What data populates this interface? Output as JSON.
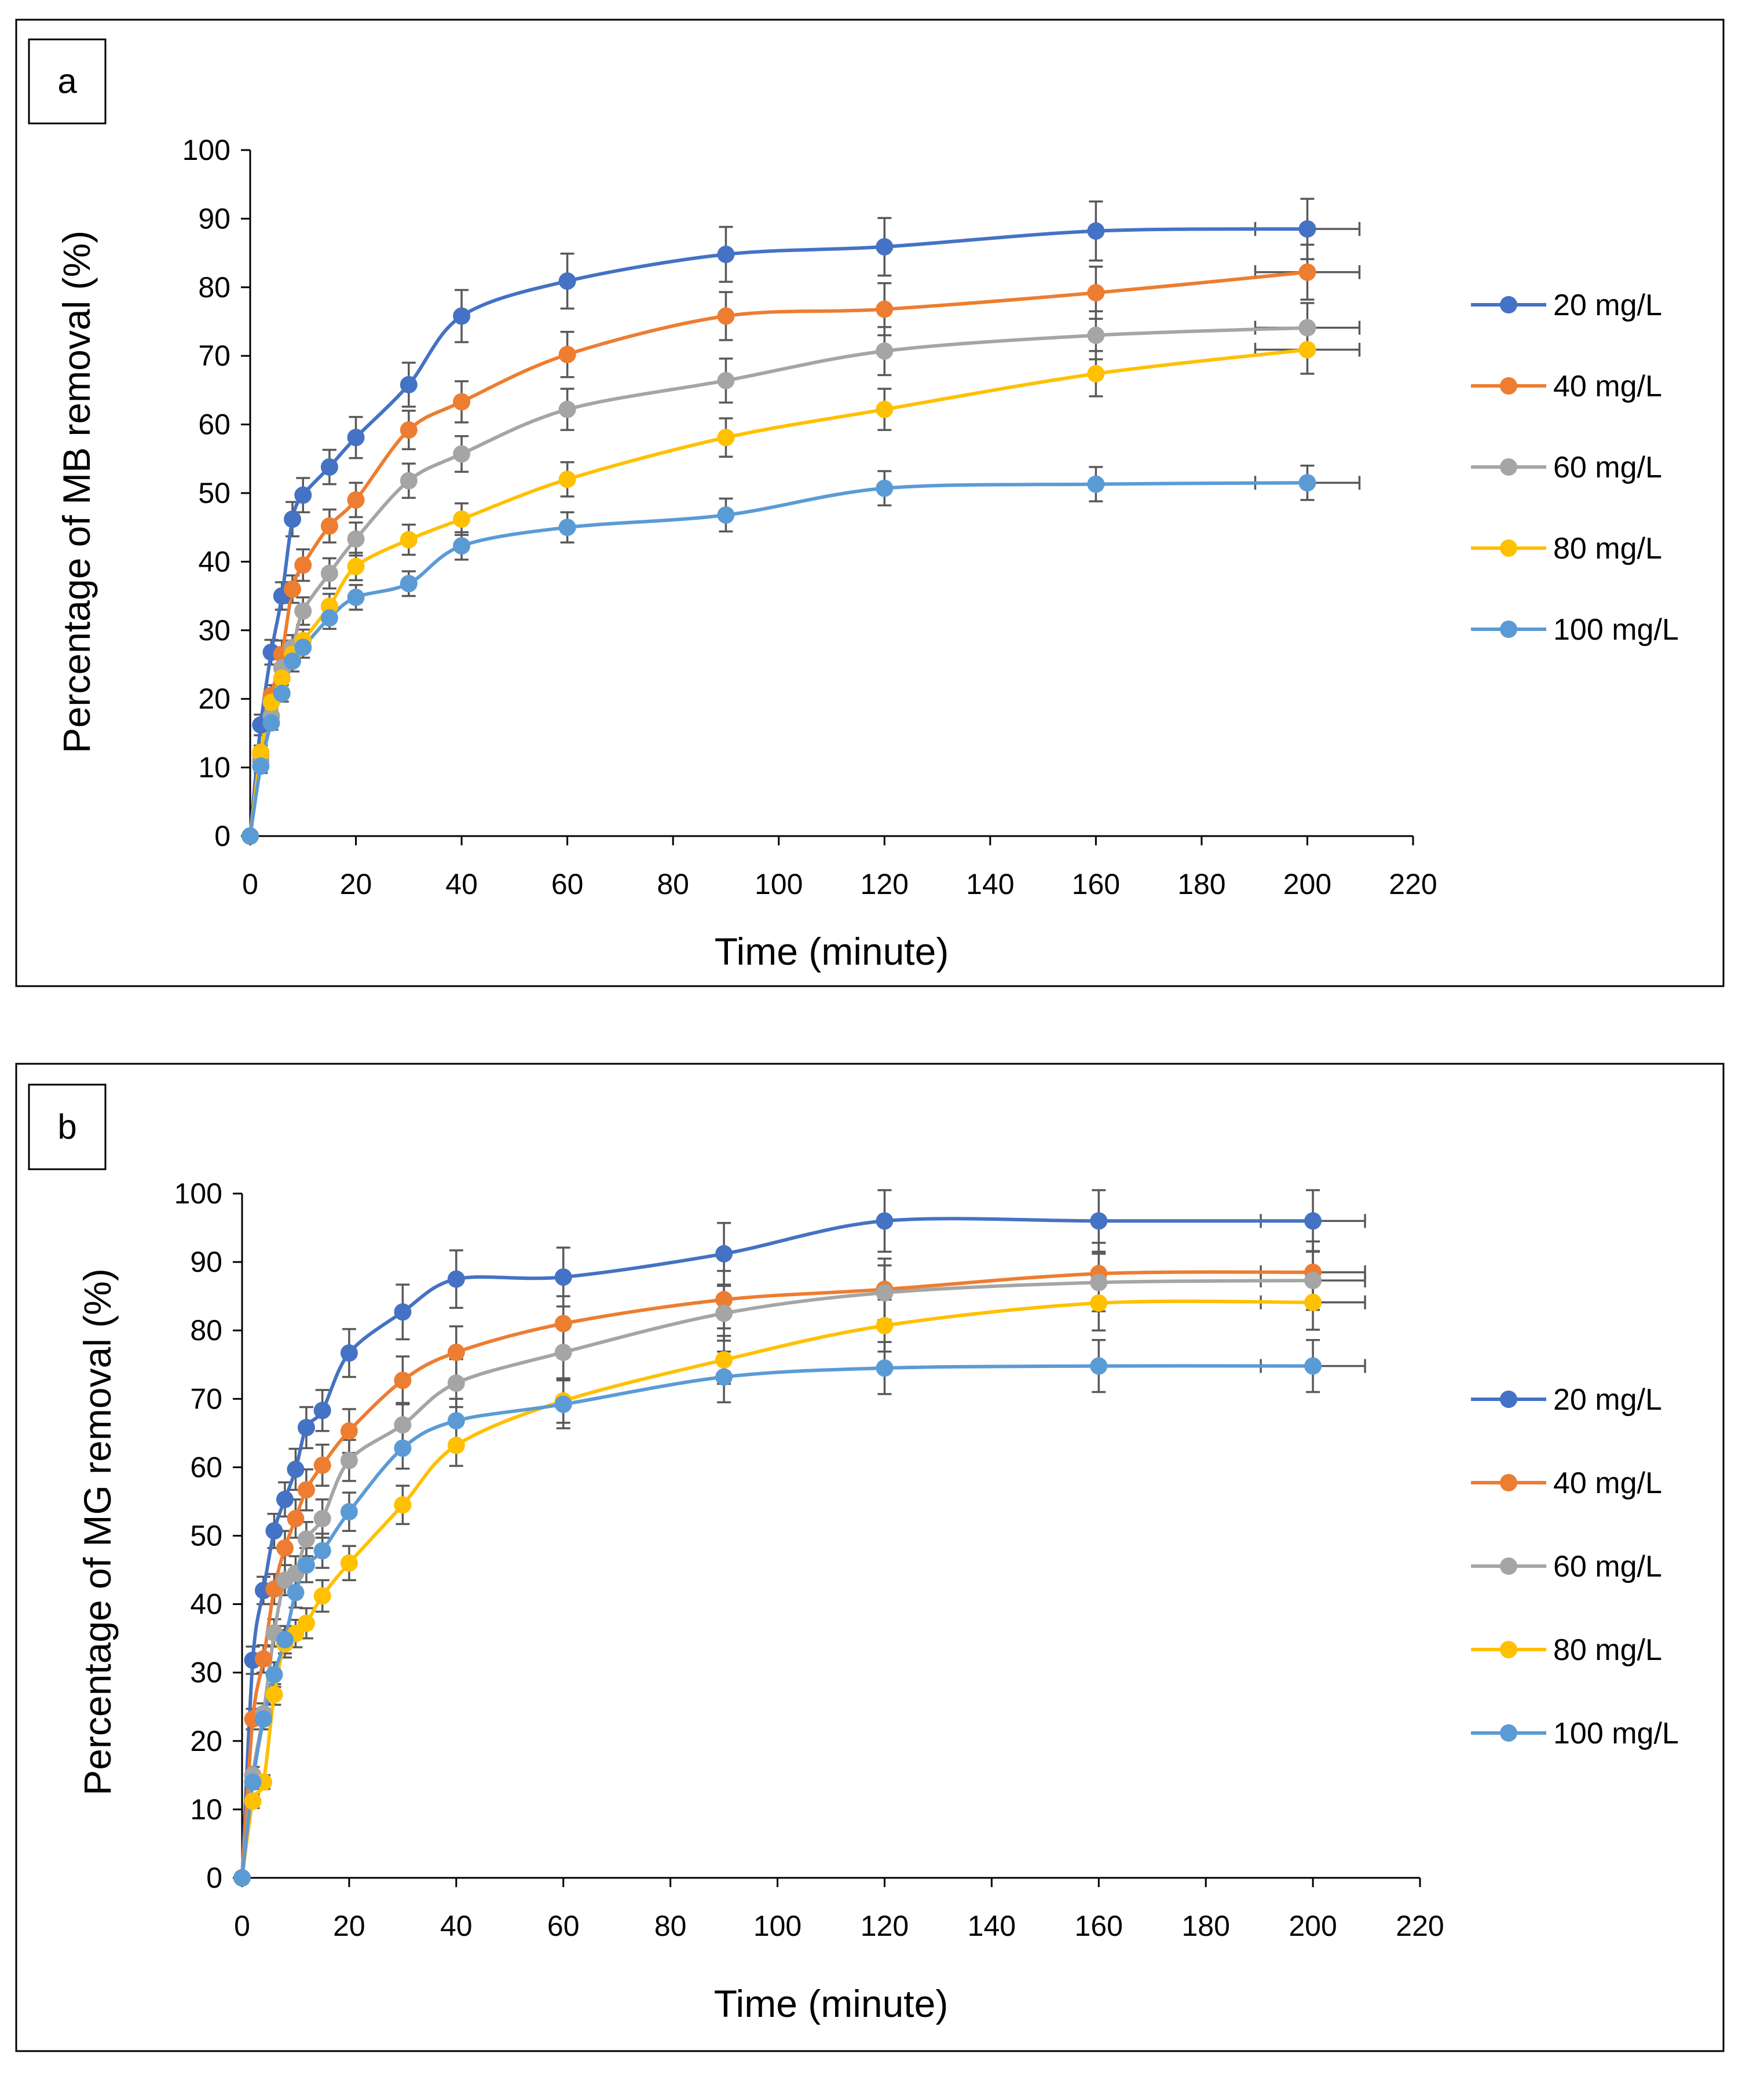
{
  "chart_data": [
    {
      "type": "line",
      "panel_label": "a",
      "xlabel": "Time (minute)",
      "ylabel": "Percentage of MB removal (%)",
      "xlim": [
        0,
        220
      ],
      "ylim": [
        0,
        100
      ],
      "xticks": [
        0,
        20,
        40,
        60,
        80,
        100,
        120,
        140,
        160,
        180,
        200,
        220
      ],
      "yticks": [
        0,
        10,
        20,
        30,
        40,
        50,
        60,
        70,
        80,
        90,
        100
      ],
      "legend_position": "right",
      "x": [
        0,
        2,
        4,
        6,
        8,
        10,
        15,
        20,
        30,
        40,
        60,
        90,
        120,
        160,
        200
      ],
      "series": [
        {
          "name": "20 mg/L",
          "color": "#4472C4",
          "values": [
            0,
            16.2,
            26.8,
            35,
            46.2,
            49.7,
            53.8,
            58.1,
            65.8,
            75.8,
            80.9,
            84.8,
            85.9,
            88.2,
            88.5
          ],
          "errors": [
            0,
            1.5,
            1.8,
            2,
            2.5,
            2.5,
            2.5,
            3,
            3.2,
            3.8,
            4,
            4,
            4.2,
            4.3,
            4.4
          ]
        },
        {
          "name": "40 mg/L",
          "color": "#ED7D31",
          "values": [
            0,
            12,
            20.5,
            26.5,
            36,
            39.5,
            45.2,
            49,
            59.2,
            63.3,
            70.2,
            75.8,
            76.8,
            79.2,
            82.2
          ],
          "errors": [
            0,
            1.2,
            1.5,
            2,
            2,
            2.3,
            2.4,
            2.5,
            2.8,
            3,
            3.3,
            3.5,
            3.8,
            3.8,
            4
          ]
        },
        {
          "name": "60 mg/L",
          "color": "#A5A5A5",
          "values": [
            0,
            11,
            17.5,
            24.5,
            27.5,
            32.8,
            38.3,
            43.3,
            51.8,
            55.7,
            62.2,
            66.4,
            70.7,
            73,
            74.1
          ],
          "errors": [
            0,
            1,
            1.2,
            1.5,
            1.8,
            2,
            2.2,
            2.4,
            2.5,
            2.6,
            3,
            3.2,
            3.5,
            3.5,
            3.6
          ]
        },
        {
          "name": "80 mg/L",
          "color": "#FFC000",
          "values": [
            0,
            12.2,
            19.5,
            23,
            26.5,
            28.5,
            33.5,
            39.3,
            43.2,
            46.2,
            52,
            58.1,
            62.2,
            67.4,
            70.9
          ],
          "errors": [
            0,
            1,
            1.2,
            1.5,
            1.5,
            1.6,
            1.8,
            2,
            2.2,
            2.3,
            2.5,
            2.8,
            3,
            3.3,
            3.5
          ]
        },
        {
          "name": "100 mg/L",
          "color": "#5B9BD5",
          "values": [
            0,
            10.2,
            16.5,
            20.8,
            25.5,
            27.5,
            31.8,
            34.8,
            36.8,
            42.3,
            45,
            46.8,
            50.7,
            51.3,
            51.5
          ],
          "errors": [
            0,
            1,
            1,
            1.2,
            1.5,
            1.5,
            1.6,
            1.8,
            1.8,
            2,
            2.2,
            2.4,
            2.5,
            2.5,
            2.5
          ]
        }
      ]
    },
    {
      "type": "line",
      "panel_label": "b",
      "xlabel": "Time (minute)",
      "ylabel": "Percentage of MG removal (%)",
      "xlim": [
        0,
        220
      ],
      "ylim": [
        0,
        100
      ],
      "xticks": [
        0,
        20,
        40,
        60,
        80,
        100,
        120,
        140,
        160,
        180,
        200,
        220
      ],
      "yticks": [
        0,
        10,
        20,
        30,
        40,
        50,
        60,
        70,
        80,
        90,
        100
      ],
      "legend_position": "right",
      "x": [
        0,
        2,
        4,
        6,
        8,
        10,
        12,
        15,
        20,
        30,
        40,
        60,
        90,
        120,
        160,
        200
      ],
      "series": [
        {
          "name": "20 mg/L",
          "color": "#4472C4",
          "values": [
            0,
            31.8,
            42,
            50.7,
            55.3,
            59.7,
            65.8,
            68.3,
            76.7,
            82.7,
            87.5,
            87.8,
            91.2,
            96,
            96,
            96
          ],
          "errors": [
            0,
            2,
            2,
            2.5,
            2.5,
            3,
            3,
            3,
            3.5,
            4,
            4.2,
            4.3,
            4.5,
            4.5,
            4.5,
            4.5
          ]
        },
        {
          "name": "40 mg/L",
          "color": "#ED7D31",
          "values": [
            0,
            23.2,
            32,
            42.2,
            48.2,
            52.5,
            56.7,
            60.3,
            65.3,
            72.7,
            76.8,
            81,
            84.5,
            86,
            88.3,
            88.5
          ],
          "errors": [
            0,
            1.5,
            2,
            2.2,
            2.5,
            2.8,
            3,
            3,
            3.2,
            3.5,
            3.8,
            4,
            4.2,
            4.5,
            4.5,
            4.5
          ]
        },
        {
          "name": "60 mg/L",
          "color": "#A5A5A5",
          "values": [
            0,
            15,
            24,
            35.8,
            43.5,
            44.5,
            49.5,
            52.5,
            61,
            66.2,
            72.3,
            76.8,
            82.5,
            85.5,
            87,
            87.3
          ],
          "errors": [
            0,
            1.2,
            1.5,
            2,
            2.2,
            2.5,
            2.5,
            2.8,
            3,
            3.2,
            3.5,
            3.8,
            4,
            4,
            4.2,
            4.3
          ]
        },
        {
          "name": "80 mg/L",
          "color": "#FFC000",
          "values": [
            0,
            11.2,
            14,
            26.8,
            34.2,
            35.7,
            37.2,
            41.2,
            46,
            54.5,
            63.2,
            69.7,
            75.7,
            80.7,
            84,
            84.1
          ],
          "errors": [
            0,
            1,
            1,
            1.5,
            2,
            2,
            2.2,
            2.3,
            2.5,
            2.8,
            3,
            3.2,
            3.5,
            3.8,
            4,
            4
          ]
        },
        {
          "name": "100 mg/L",
          "color": "#5B9BD5",
          "values": [
            0,
            14,
            23.2,
            29.7,
            34.8,
            41.7,
            45.7,
            47.8,
            53.5,
            62.8,
            66.8,
            69.2,
            73.2,
            74.5,
            74.8,
            74.8
          ],
          "errors": [
            0,
            1,
            1.5,
            1.8,
            2,
            2.2,
            2.5,
            2.5,
            2.8,
            3,
            3.2,
            3.5,
            3.7,
            3.8,
            3.8,
            3.8
          ]
        }
      ]
    }
  ]
}
